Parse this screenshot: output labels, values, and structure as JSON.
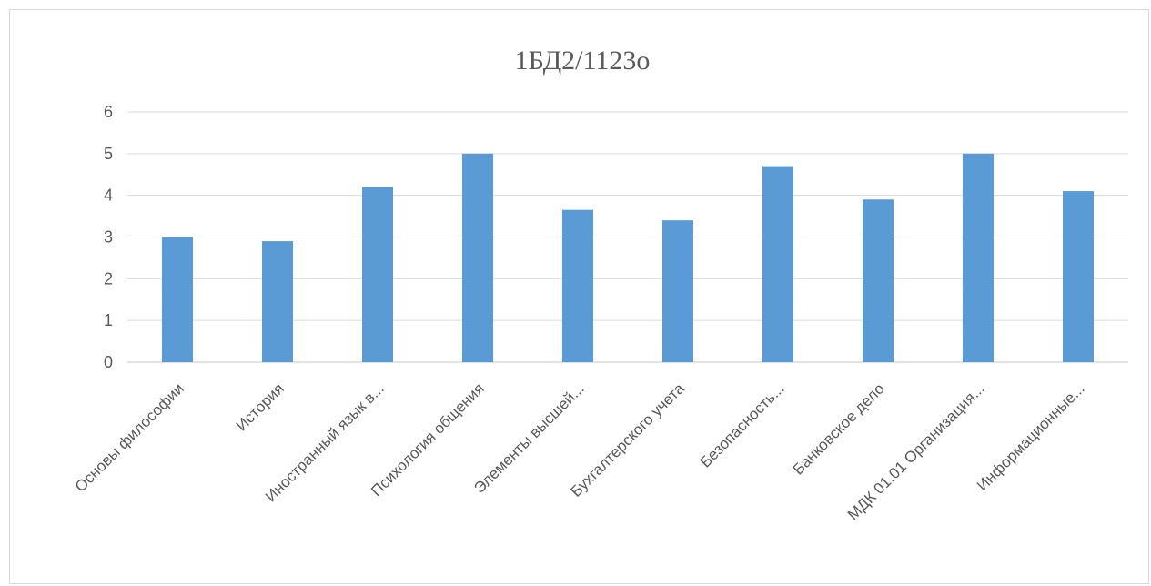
{
  "chart_data": {
    "type": "bar",
    "title": "1БД2/1123о",
    "xlabel": "",
    "ylabel": "",
    "ylim": [
      0,
      6
    ],
    "yticks": [
      "0",
      "1",
      "2",
      "3",
      "4",
      "5",
      "6"
    ],
    "grid": true,
    "legend": "none",
    "categories": [
      "Основы философии",
      "История",
      "Иностранный язык в...",
      "Психология общения",
      "Элементы высшей...",
      "Бухгалтерского учета",
      "Безопасность...",
      "Банковское дело",
      "МДК 01.01 Организация...",
      "Информационные..."
    ],
    "values": [
      3,
      2.9,
      4.2,
      5,
      3.65,
      3.4,
      4.7,
      3.9,
      5,
      4.1
    ],
    "colors": {
      "bar": "#5b9bd5",
      "grid": "#d9d9d9",
      "text": "#595959"
    }
  }
}
